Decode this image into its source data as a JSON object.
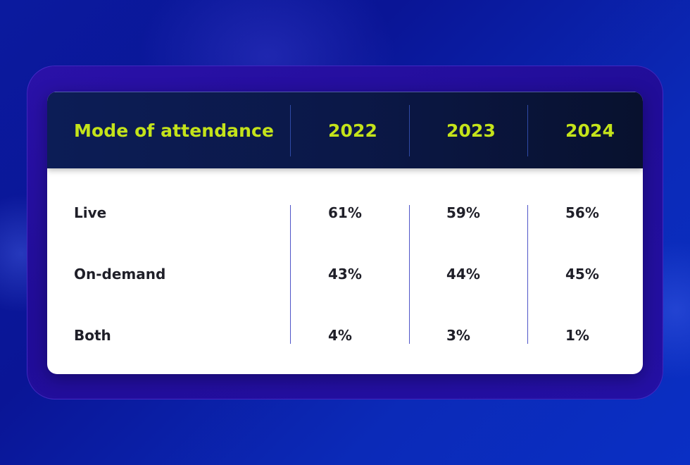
{
  "chart_data": {
    "type": "table",
    "columns": [
      "Mode of attendance",
      "2022",
      "2023",
      "2024"
    ],
    "rows": [
      {
        "label": "Live",
        "values": [
          "61%",
          "59%",
          "56%"
        ]
      },
      {
        "label": "On-demand",
        "values": [
          "43%",
          "44%",
          "45%"
        ]
      },
      {
        "label": "Both",
        "values": [
          "4%",
          "3%",
          "1%"
        ]
      }
    ]
  },
  "colors": {
    "header_text": "#c4e31a",
    "header_bg": "#0c1d56",
    "body_text": "#1f1f28",
    "background": "#0b1a9e",
    "panel": "#2410a4"
  }
}
